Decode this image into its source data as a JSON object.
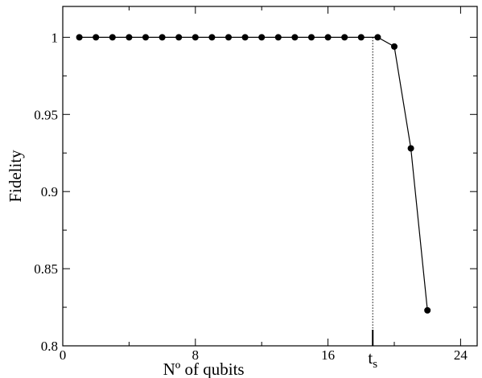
{
  "chart_data": {
    "type": "line",
    "title": "",
    "xlabel": "Nº of qubits",
    "ylabel": "Fidelity",
    "xlim": [
      0,
      25
    ],
    "ylim": [
      0.8,
      1.02
    ],
    "x_ticks": [
      0,
      8,
      16,
      24
    ],
    "x_tick_labels": [
      "0",
      "8",
      "16",
      "24"
    ],
    "y_ticks": [
      0.8,
      0.85,
      0.9,
      0.95,
      1.0
    ],
    "y_tick_labels": [
      "0.8",
      "0.85",
      "0.9",
      "0.95",
      "1"
    ],
    "grid": false,
    "legend": "none",
    "series": [
      {
        "x": [
          1,
          2,
          3,
          4,
          5,
          6,
          7,
          8,
          9,
          10,
          11,
          12,
          13,
          14,
          15,
          16,
          17,
          18,
          19,
          20,
          21,
          22
        ],
        "y": [
          1,
          1,
          1,
          1,
          1,
          1,
          1,
          1,
          1,
          1,
          1,
          1,
          1,
          1,
          1,
          1,
          1,
          1,
          1,
          0.994,
          0.928,
          0.823
        ],
        "marker": "filled-circle",
        "color": "#000000"
      }
    ],
    "annotation": {
      "label_main": "t",
      "label_sub": "s",
      "x": 18.7,
      "style": "dotted-vertical-line"
    }
  }
}
